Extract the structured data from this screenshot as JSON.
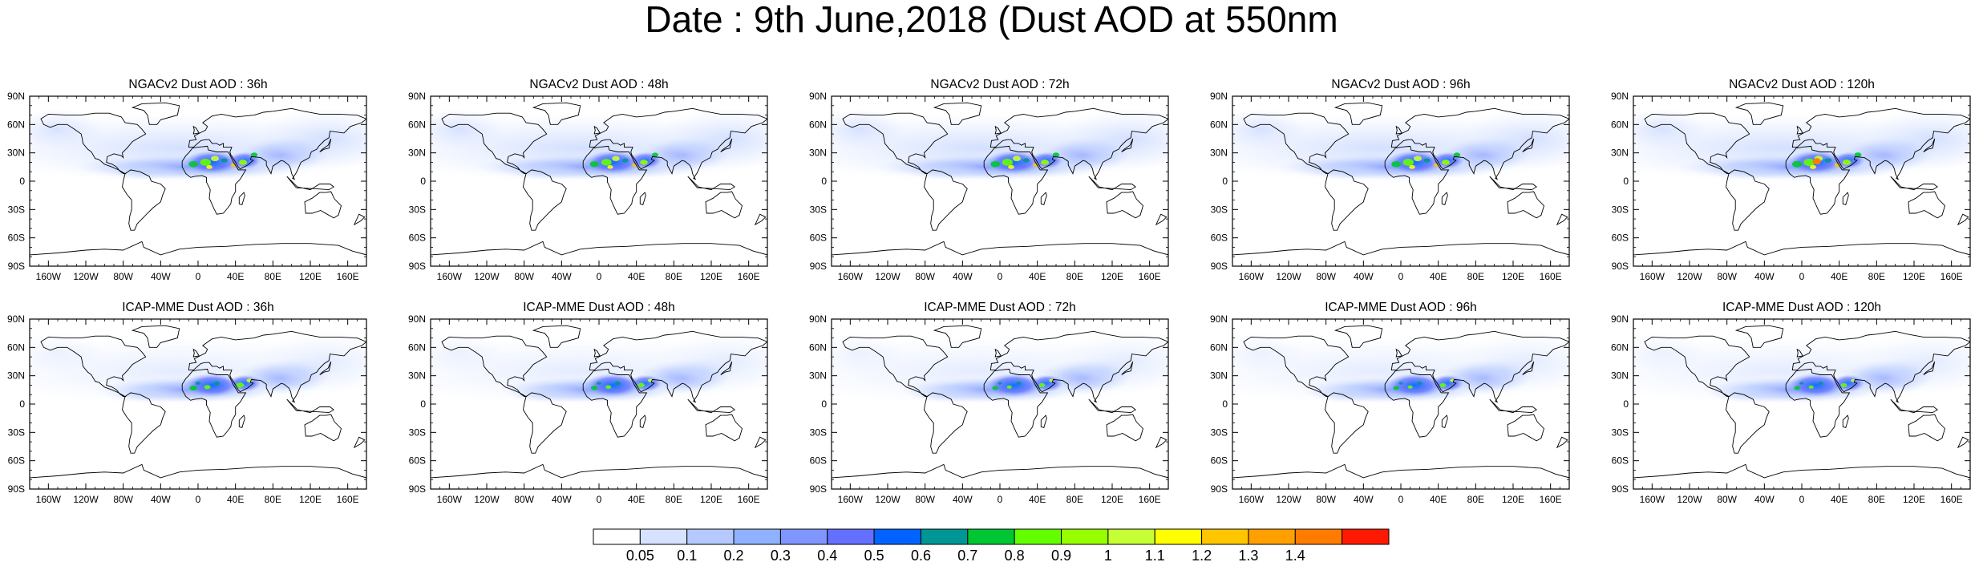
{
  "title": "Date : 9th June,2018 (Dust AOD at 550nm",
  "panels": [
    {
      "title": "NGACv2 Dust AOD : 36h",
      "model": "NGACv2",
      "lead": "36h",
      "intensity": 1.0
    },
    {
      "title": "NGACv2 Dust AOD : 48h",
      "model": "NGACv2",
      "lead": "48h",
      "intensity": 0.95
    },
    {
      "title": "NGACv2 Dust AOD : 72h",
      "model": "NGACv2",
      "lead": "72h",
      "intensity": 1.0
    },
    {
      "title": "NGACv2 Dust AOD : 96h",
      "model": "NGACv2",
      "lead": "96h",
      "intensity": 1.0
    },
    {
      "title": "NGACv2 Dust AOD : 120h",
      "model": "NGACv2",
      "lead": "120h",
      "intensity": 1.05
    },
    {
      "title": "ICAP-MME Dust AOD : 36h",
      "model": "ICAP-MME",
      "lead": "36h",
      "intensity": 0.95
    },
    {
      "title": "ICAP-MME Dust AOD : 48h",
      "model": "ICAP-MME",
      "lead": "48h",
      "intensity": 0.85
    },
    {
      "title": "ICAP-MME Dust AOD : 72h",
      "model": "ICAP-MME",
      "lead": "72h",
      "intensity": 0.75
    },
    {
      "title": "ICAP-MME Dust AOD : 96h",
      "model": "ICAP-MME",
      "lead": "96h",
      "intensity": 0.75
    },
    {
      "title": "ICAP-MME Dust AOD : 120h",
      "model": "ICAP-MME",
      "lead": "120h",
      "intensity": 0.75
    }
  ],
  "lat_labels": [
    "90N",
    "60N",
    "30N",
    "0",
    "30S",
    "60S",
    "90S"
  ],
  "lon_labels": [
    "160W",
    "120W",
    "80W",
    "40W",
    "0",
    "40E",
    "80E",
    "120E",
    "160E"
  ],
  "lat_values": [
    90,
    60,
    30,
    0,
    -30,
    -60,
    -90
  ],
  "lon_values": [
    -160,
    -120,
    -80,
    -40,
    0,
    40,
    80,
    120,
    160
  ],
  "colorbar": {
    "labels": [
      "0.05",
      "0.1",
      "0.2",
      "0.3",
      "0.4",
      "0.5",
      "0.6",
      "0.7",
      "0.8",
      "0.9",
      "1",
      "1.1",
      "1.2",
      "1.3",
      "1.4"
    ],
    "colors": [
      "#ffffff",
      "#d6e2ff",
      "#b5c9ff",
      "#8eb2ff",
      "#7f96ff",
      "#6370ff",
      "#0063ff",
      "#009696",
      "#00c633",
      "#63ff00",
      "#96ff00",
      "#c6ff33",
      "#ffff00",
      "#ffc600",
      "#ffa000",
      "#ff7c00",
      "#ff1900"
    ]
  }
}
